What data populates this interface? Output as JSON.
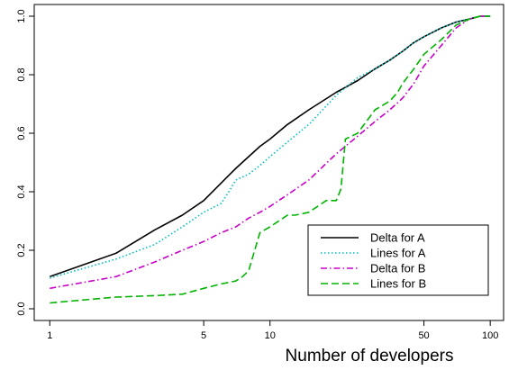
{
  "chart_data": {
    "type": "line",
    "title": "",
    "xlabel": "Number of developers",
    "ylabel": "",
    "x_scale": "log",
    "xlim": [
      0.85,
      115
    ],
    "ylim": [
      -0.04,
      1.04
    ],
    "x_ticks": [
      1,
      5,
      10,
      50,
      100
    ],
    "x_tick_labels": [
      "1",
      "5",
      "10",
      "50",
      "100"
    ],
    "y_ticks": [
      0,
      0.2,
      0.4,
      0.6,
      0.8,
      1.0
    ],
    "y_tick_labels": [
      "0.0",
      "0.2",
      "0.4",
      "0.6",
      "0.8",
      "1.0"
    ],
    "legend_position": "bottom-right",
    "grid": false,
    "series": [
      {
        "name": "Delta for A",
        "color": "#000000",
        "style": "solid",
        "x": [
          1,
          2,
          3,
          4,
          5,
          6,
          7,
          8,
          9,
          10,
          12,
          15,
          20,
          25,
          30,
          35,
          40,
          45,
          50,
          60,
          70,
          80,
          90,
          100
        ],
        "y": [
          0.11,
          0.19,
          0.27,
          0.32,
          0.37,
          0.43,
          0.48,
          0.52,
          0.555,
          0.58,
          0.63,
          0.68,
          0.74,
          0.78,
          0.82,
          0.85,
          0.88,
          0.91,
          0.93,
          0.96,
          0.98,
          0.99,
          1.0,
          1.0
        ]
      },
      {
        "name": "Lines for A",
        "color": "#00bfbf",
        "style": "dotted",
        "x": [
          1,
          2,
          3,
          4,
          5,
          6,
          6.5,
          7,
          8,
          9,
          10,
          12,
          15,
          20,
          25,
          30,
          35,
          40,
          45,
          50,
          60,
          70,
          80,
          90,
          100
        ],
        "y": [
          0.105,
          0.17,
          0.22,
          0.28,
          0.33,
          0.36,
          0.4,
          0.44,
          0.46,
          0.49,
          0.52,
          0.57,
          0.63,
          0.73,
          0.79,
          0.82,
          0.85,
          0.88,
          0.91,
          0.93,
          0.96,
          0.98,
          0.99,
          1.0,
          1.0
        ]
      },
      {
        "name": "Delta for B",
        "color": "#c800c8",
        "style": "dashdot",
        "x": [
          1,
          2,
          3,
          4,
          5,
          6,
          7,
          8,
          9,
          10,
          12,
          15,
          20,
          25,
          30,
          35,
          40,
          45,
          50,
          60,
          70,
          80,
          90,
          100
        ],
        "y": [
          0.07,
          0.11,
          0.16,
          0.2,
          0.23,
          0.26,
          0.28,
          0.31,
          0.33,
          0.35,
          0.39,
          0.44,
          0.53,
          0.59,
          0.64,
          0.68,
          0.72,
          0.77,
          0.83,
          0.9,
          0.96,
          0.99,
          1.0,
          1.0
        ]
      },
      {
        "name": "Lines for B",
        "color": "#00b400",
        "style": "dashed",
        "x": [
          1,
          2,
          3,
          4,
          5,
          6,
          7,
          7.5,
          8,
          9,
          10,
          12,
          13,
          15,
          18,
          20,
          21,
          22,
          25,
          30,
          35,
          38,
          40,
          45,
          50,
          60,
          70,
          80,
          90,
          100
        ],
        "y": [
          0.02,
          0.04,
          0.045,
          0.05,
          0.07,
          0.085,
          0.095,
          0.11,
          0.13,
          0.26,
          0.28,
          0.32,
          0.32,
          0.33,
          0.37,
          0.37,
          0.41,
          0.58,
          0.6,
          0.68,
          0.71,
          0.74,
          0.77,
          0.82,
          0.87,
          0.92,
          0.97,
          0.99,
          1.0,
          1.0
        ]
      }
    ]
  }
}
